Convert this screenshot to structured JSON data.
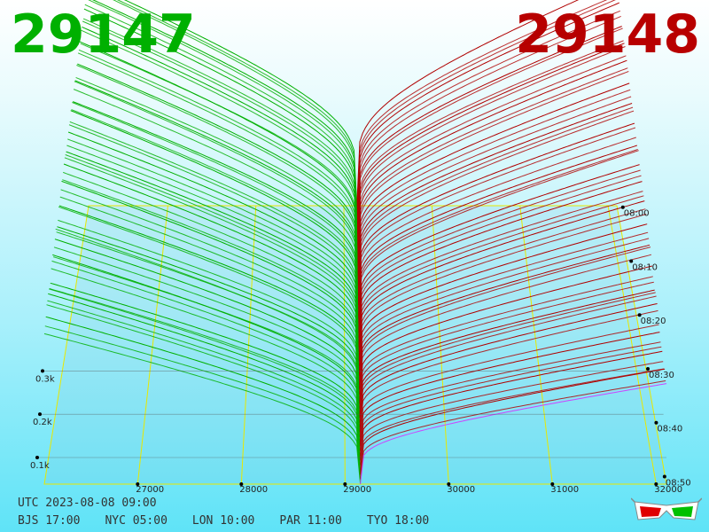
{
  "header": {
    "bid_price": "29147",
    "ask_price": "29148"
  },
  "footer": {
    "utc": "UTC 2023-08-08 09:00",
    "zones": [
      "BJS 17:00",
      "NYC 05:00",
      "LON 10:00",
      "PAR 11:00",
      "TYO 18:00"
    ]
  },
  "colors": {
    "bid": "#00b000",
    "ask": "#b00000",
    "latest_ask": "#cc44ff",
    "grid": "#e8e800"
  },
  "icons": [
    "3d-glasses-icon"
  ],
  "chart_data": {
    "type": "area",
    "title": "",
    "x_ticks": [
      "27000",
      "28000",
      "29000",
      "30000",
      "31000",
      "32000"
    ],
    "xlim": [
      26100,
      32100
    ],
    "volume_ticks": [
      "0.1k",
      "0.2k",
      "0.3k"
    ],
    "volume_max": 0.3,
    "time_ticks": [
      "08:00",
      "08:10",
      "08:20",
      "08:30",
      "08:40",
      "08:50"
    ],
    "time_range": [
      "08:00",
      "09:00"
    ],
    "mid_price": 29147.5,
    "series": [
      {
        "name": "bid",
        "side": "bid",
        "price_range": [
          26100,
          29147
        ],
        "depth_at_far_end": 0.3
      },
      {
        "name": "ask",
        "side": "ask",
        "price_range": [
          29148,
          32100
        ],
        "depth_at_far_end": 0.29
      }
    ],
    "legend": "none",
    "grid": true
  }
}
